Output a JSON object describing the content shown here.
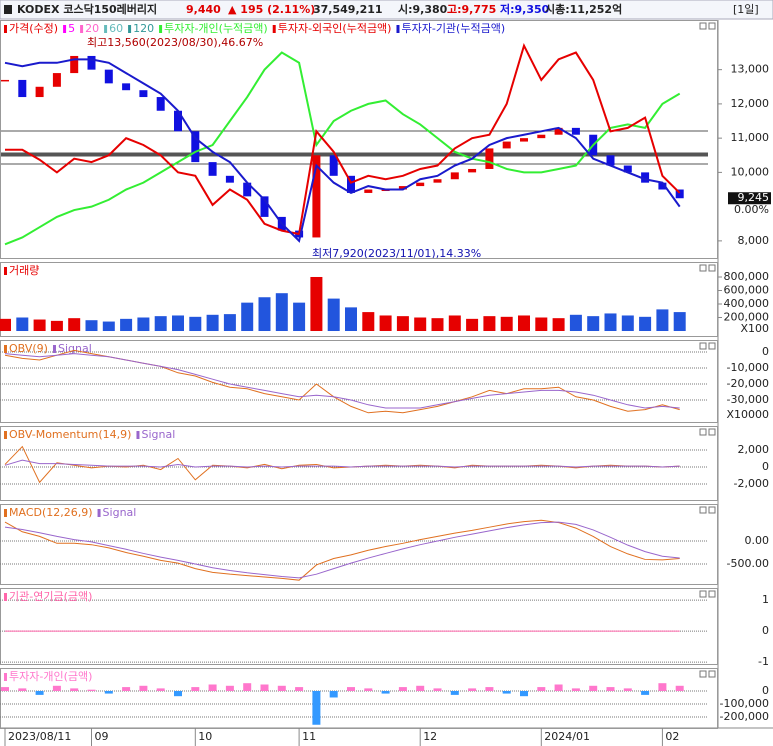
{
  "header": {
    "name": "KODEX 코스닥150레버리지",
    "price": "9,440",
    "change": "▲ 195 (2.11%)",
    "volume": "37,549,211",
    "open": "시:9,380",
    "high": "고:9,775",
    "low": "저:9,350",
    "cap": "시총:11,252억",
    "period": "[1일]"
  },
  "x_axis": {
    "categories": [
      "2023/08/11",
      null,
      null,
      null,
      null,
      "09",
      null,
      null,
      null,
      null,
      null,
      "10",
      null,
      null,
      null,
      null,
      null,
      "11",
      null,
      null,
      null,
      null,
      null,
      null,
      "12",
      null,
      null,
      null,
      null,
      null,
      null,
      "2024/01",
      null,
      null,
      null,
      null,
      null,
      null,
      "02",
      null
    ]
  },
  "chart_data": [
    {
      "type": "price",
      "ylim": [
        7500,
        14450
      ],
      "yticks": [
        {
          "value": 8000,
          "label": "8,000"
        },
        {
          "value": 10000,
          "label": "10,000"
        },
        {
          "value": 11000,
          "label": "11,000"
        },
        {
          "value": 12000,
          "label": "12,000"
        },
        {
          "value": 13000,
          "label": "13,000"
        }
      ],
      "grid": false,
      "current_price": {
        "value": 9245,
        "label": "9,245"
      },
      "current_change": "0.00%",
      "annotations": [
        "최고13,560(2023/08/30),46.67%",
        "최저7,920(2023/11/01),14.33%"
      ],
      "ma_legend": [
        {
          "name": "5",
          "color": "#ff00ff"
        },
        {
          "name": "20",
          "color": "#ff66cc"
        },
        {
          "name": "60",
          "color": "#66bbbb"
        },
        {
          "name": "120",
          "color": "#339999"
        }
      ],
      "series": [
        {
          "name": "가격(수정)",
          "type": "candle",
          "color": "#e60000",
          "down_color": "#1010e0",
          "values": [
            12700,
            12200,
            12500,
            12900,
            13400,
            13000,
            12600,
            12400,
            12200,
            11800,
            11200,
            10300,
            9900,
            9700,
            9300,
            8700,
            8300,
            8100,
            10500,
            9900,
            9400,
            9500,
            9500,
            9600,
            9700,
            9800,
            10000,
            10100,
            10700,
            10900,
            11000,
            11100,
            11300,
            11100,
            10500,
            10200,
            10000,
            9700,
            9500,
            9245
          ]
        },
        {
          "name": "투자자-개인(누적금액)",
          "type": "line",
          "color": "#33ee33",
          "values": [
            7900,
            8100,
            8400,
            8700,
            8900,
            9000,
            9200,
            9500,
            9700,
            10000,
            10300,
            10600,
            10800,
            11500,
            12200,
            13000,
            13500,
            13200,
            10800,
            11500,
            11800,
            12000,
            12100,
            11700,
            11400,
            11000,
            10600,
            10400,
            10300,
            10100,
            10000,
            10000,
            10100,
            10200,
            10800,
            11300,
            11400,
            11300,
            12000,
            12300
          ]
        },
        {
          "name": "투자자-외국인(누적금액)",
          "type": "line",
          "color": "#e60000",
          "values": [
            10660,
            10660,
            10370,
            10000,
            10400,
            10300,
            10500,
            11000,
            10800,
            10500,
            10000,
            9900,
            9050,
            9500,
            9200,
            8500,
            8300,
            8200,
            11200,
            10600,
            9700,
            9900,
            9800,
            9900,
            10100,
            10200,
            10700,
            11000,
            11100,
            12000,
            13700,
            12700,
            13300,
            13500,
            12700,
            11200,
            11300,
            11600,
            9900,
            9400
          ]
        },
        {
          "name": "투자자-기관(누적금액)",
          "type": "line",
          "color": "#1a1acc",
          "values": [
            13200,
            13100,
            13200,
            13200,
            13300,
            13300,
            13200,
            12900,
            12600,
            12300,
            11800,
            11000,
            10600,
            10300,
            9700,
            9200,
            8500,
            8000,
            10200,
            9700,
            9400,
            9600,
            9500,
            9500,
            9800,
            9900,
            10200,
            10400,
            10800,
            11000,
            11100,
            11200,
            11300,
            11000,
            10400,
            10200,
            10000,
            9800,
            9700,
            9000
          ]
        }
      ]
    },
    {
      "type": "bar",
      "ylim": [
        -74000,
        1022000
      ],
      "yticks": [
        {
          "value": 200000,
          "label": "200,000"
        },
        {
          "value": 400000,
          "label": "400,000"
        },
        {
          "value": 600000,
          "label": "600,000"
        },
        {
          "value": 800000,
          "label": "800,000"
        }
      ],
      "grid": false,
      "unit": "X100",
      "series": [
        {
          "name": "거래량",
          "type": "volume",
          "color": "#e60000",
          "down_color": "#2255dd",
          "values": [
            180000,
            200000,
            170000,
            150000,
            190000,
            160000,
            140000,
            180000,
            200000,
            220000,
            230000,
            210000,
            240000,
            250000,
            420000,
            500000,
            560000,
            420000,
            800000,
            480000,
            350000,
            280000,
            230000,
            220000,
            200000,
            190000,
            230000,
            180000,
            220000,
            210000,
            230000,
            200000,
            190000,
            240000,
            220000,
            260000,
            230000,
            210000,
            320000,
            280000
          ]
        }
      ]
    },
    {
      "type": "line",
      "ylim": [
        -43750,
        7500
      ],
      "yticks": [
        0,
        {
          "value": -10000,
          "label": "-10,000"
        },
        {
          "value": -20000,
          "label": "-20,000"
        },
        {
          "value": -30000,
          "label": "-30,000"
        }
      ],
      "grid": true,
      "unit": "X10000",
      "series": [
        {
          "name": "OBV(9)",
          "type": "line",
          "color": "#e07020",
          "values": [
            -2000,
            -4000,
            -5000,
            -2000,
            1000,
            -1000,
            -3000,
            -5000,
            -7000,
            -9000,
            -13000,
            -15000,
            -19000,
            -22000,
            -23000,
            -26000,
            -28000,
            -30000,
            -20000,
            -28000,
            -34000,
            -38000,
            -37000,
            -38000,
            -36000,
            -34000,
            -31000,
            -28000,
            -24000,
            -26000,
            -23000,
            -23000,
            -22000,
            -28000,
            -30000,
            -34000,
            -37000,
            -36000,
            -33000,
            -36000
          ]
        },
        {
          "name": "Signal",
          "type": "line",
          "color": "#9966cc",
          "values": [
            -1000,
            -2000,
            -3000,
            -2000,
            -1000,
            -2000,
            -3000,
            -5000,
            -7000,
            -9000,
            -11000,
            -14000,
            -17000,
            -20000,
            -22000,
            -24000,
            -26000,
            -28000,
            -27000,
            -28000,
            -30000,
            -33000,
            -35000,
            -35000,
            -35000,
            -33000,
            -31000,
            -29000,
            -27000,
            -26000,
            -25000,
            -24000,
            -24000,
            -25000,
            -27000,
            -30000,
            -33000,
            -35000,
            -34000,
            -35000
          ]
        }
      ]
    },
    {
      "type": "line",
      "ylim": [
        -3880,
        4820
      ],
      "yticks": [
        {
          "value": 2000,
          "label": "2,000"
        },
        0,
        {
          "value": -2000,
          "label": "-2,000"
        }
      ],
      "grid": true,
      "series": [
        {
          "name": "OBV-Momentum(14,9)",
          "type": "line",
          "color": "#e07020",
          "values": [
            300,
            2400,
            -1800,
            500,
            200,
            -100,
            100,
            0,
            200,
            -300,
            1000,
            -1500,
            200,
            100,
            -100,
            300,
            -200,
            200,
            300,
            -100,
            0,
            100,
            200,
            100,
            200,
            100,
            -100,
            200,
            100,
            100,
            100,
            200,
            100,
            -100,
            100,
            200,
            100,
            100,
            0,
            100
          ]
        },
        {
          "name": "Signal",
          "type": "line",
          "color": "#9966cc",
          "values": [
            200,
            800,
            400,
            400,
            300,
            200,
            100,
            100,
            100,
            0,
            300,
            0,
            100,
            100,
            0,
            100,
            0,
            100,
            100,
            100,
            0,
            100,
            100,
            100,
            100,
            100,
            0,
            100,
            100,
            100,
            100,
            100,
            100,
            0,
            100,
            100,
            100,
            100,
            0,
            100
          ]
        }
      ]
    },
    {
      "type": "line",
      "ylim": [
        -933,
        803
      ],
      "yticks": [
        {
          "value": 0,
          "label": "0.00"
        },
        {
          "value": -500,
          "label": "-500.00"
        }
      ],
      "grid": true,
      "series": [
        {
          "name": "MACD(12,26,9)",
          "type": "line",
          "color": "#e07020",
          "values": [
            410,
            200,
            100,
            -50,
            -50,
            -80,
            -150,
            -250,
            -330,
            -420,
            -480,
            -600,
            -680,
            -720,
            -750,
            -780,
            -810,
            -850,
            -520,
            -380,
            -300,
            -200,
            -120,
            -50,
            30,
            100,
            170,
            230,
            300,
            370,
            420,
            450,
            400,
            280,
            100,
            -120,
            -280,
            -400,
            -410,
            -380
          ]
        },
        {
          "name": "Signal",
          "type": "line",
          "color": "#9966cc",
          "values": [
            300,
            250,
            180,
            100,
            30,
            -20,
            -100,
            -180,
            -270,
            -350,
            -420,
            -500,
            -580,
            -640,
            -690,
            -730,
            -770,
            -800,
            -720,
            -600,
            -480,
            -370,
            -270,
            -170,
            -80,
            0,
            80,
            150,
            220,
            290,
            350,
            400,
            410,
            360,
            240,
            80,
            -90,
            -230,
            -330,
            -370
          ]
        }
      ]
    },
    {
      "type": "line",
      "ylim": [
        -1.06,
        1.39
      ],
      "yticks": [
        1,
        0,
        -1
      ],
      "grid": true,
      "series": [
        {
          "name": "기관-연기금(금액)",
          "type": "line",
          "color": "#ff66aa",
          "values": [
            0,
            0,
            0,
            0,
            0,
            0,
            0,
            0,
            0,
            0,
            0,
            0,
            0,
            0,
            0,
            0,
            0,
            0,
            0,
            0,
            0,
            0,
            0,
            0,
            0,
            0,
            0,
            0,
            0,
            0,
            0,
            0,
            0,
            0,
            0,
            0,
            0,
            0,
            0,
            0
          ]
        }
      ]
    },
    {
      "type": "bar",
      "ylim": [
        -285000,
        177000
      ],
      "yticks": [
        0,
        {
          "value": -100000,
          "label": "-100,000"
        },
        {
          "value": -200000,
          "label": "-200,000"
        }
      ],
      "grid": true,
      "series": [
        {
          "name": "투자자-개인(금액)",
          "type": "bar",
          "color": "#ff77cc",
          "down_color": "#3399ff",
          "values": [
            30000,
            20000,
            -30000,
            40000,
            20000,
            10000,
            -20000,
            30000,
            40000,
            20000,
            -40000,
            30000,
            50000,
            40000,
            60000,
            50000,
            40000,
            30000,
            -260000,
            -50000,
            30000,
            20000,
            -20000,
            30000,
            40000,
            20000,
            -30000,
            20000,
            30000,
            -20000,
            -40000,
            30000,
            50000,
            20000,
            40000,
            30000,
            20000,
            -30000,
            60000,
            40000
          ]
        }
      ]
    }
  ]
}
